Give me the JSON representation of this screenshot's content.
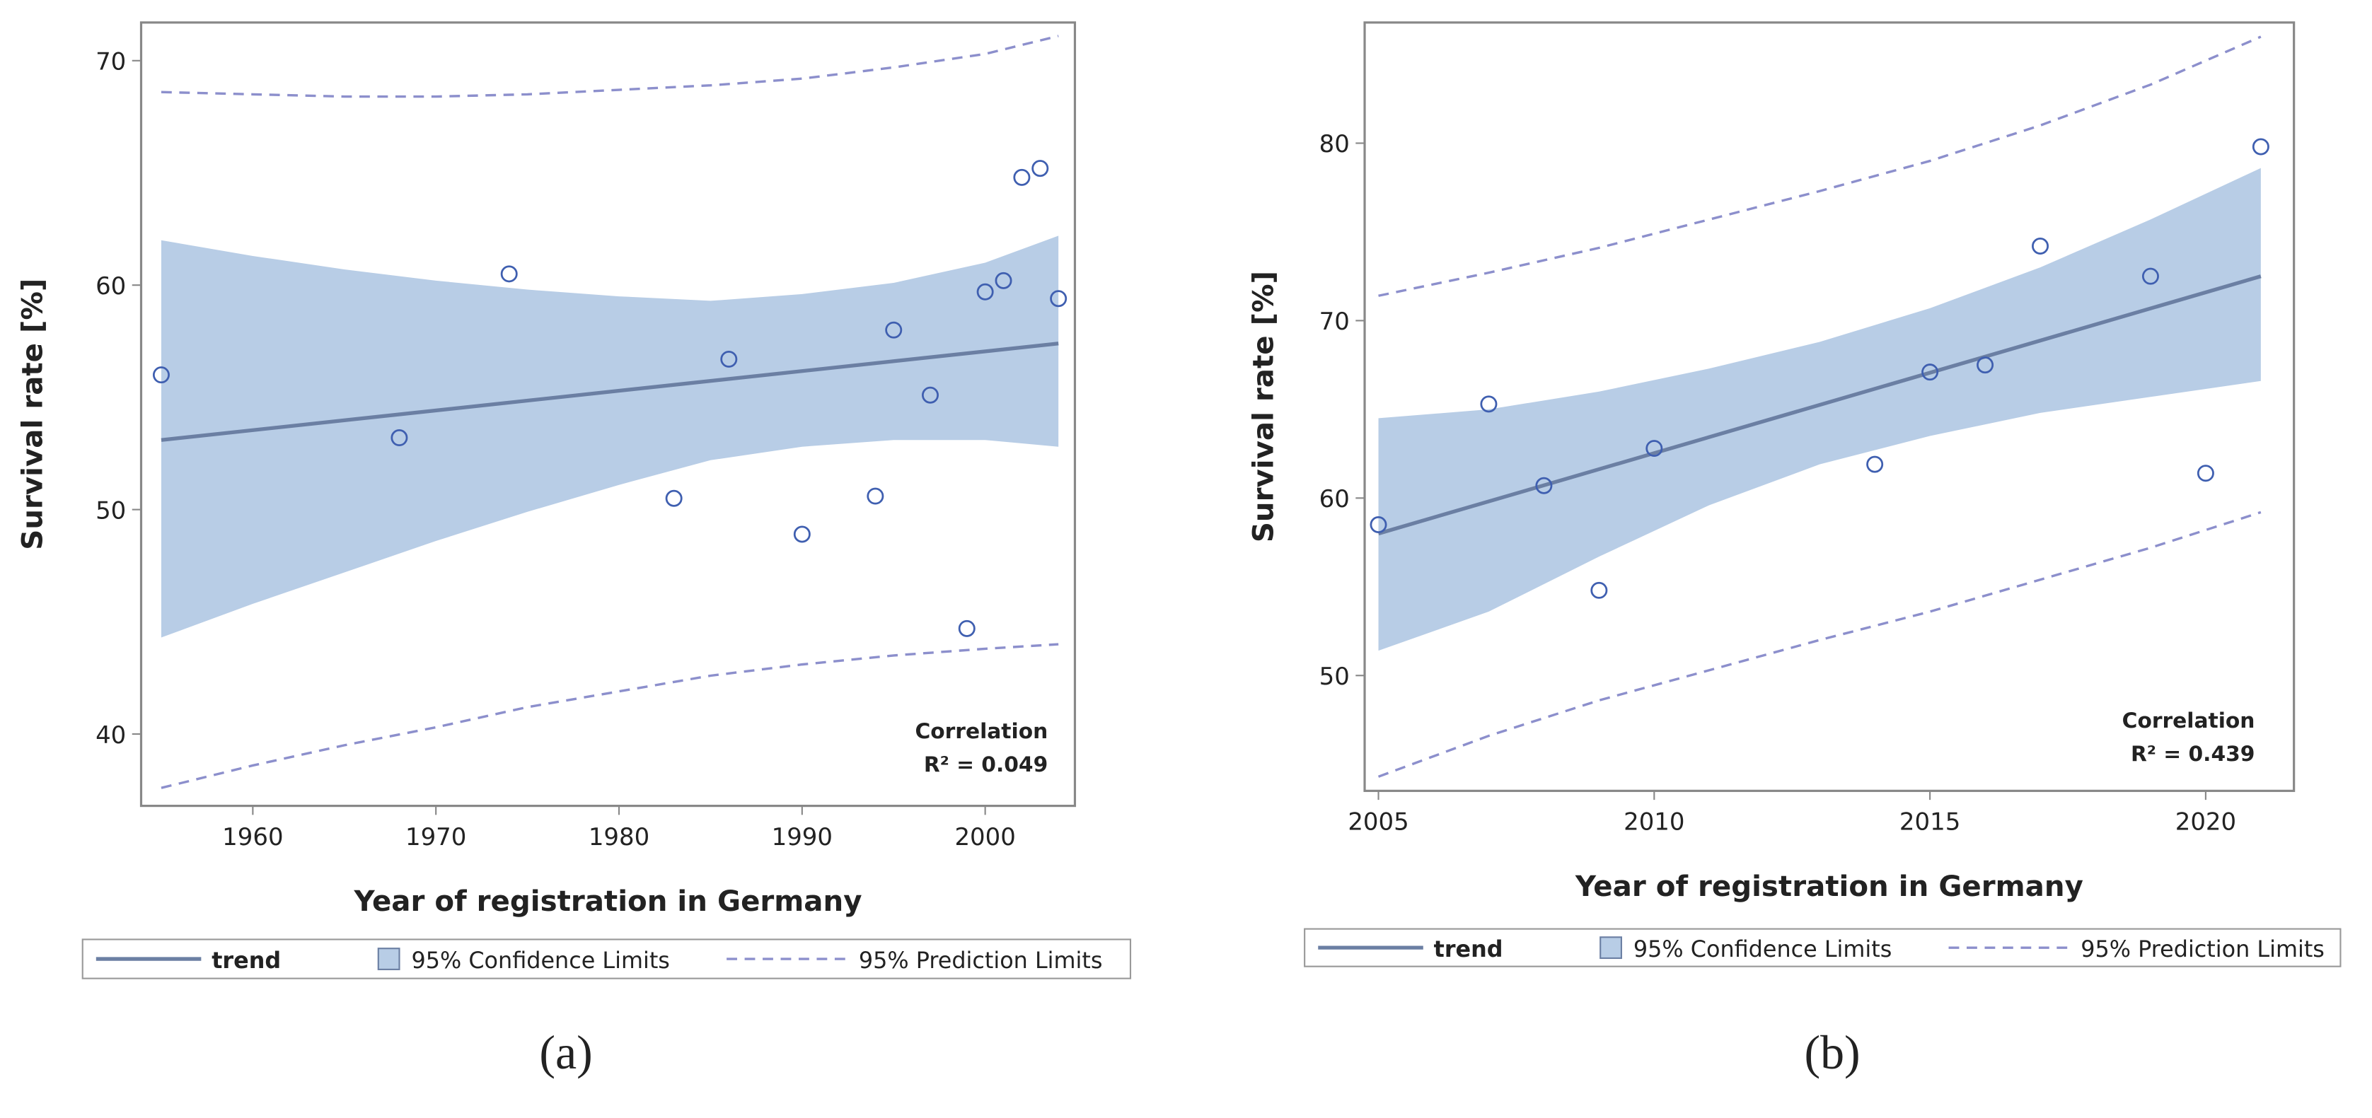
{
  "chart_data": [
    {
      "type": "scatter",
      "panel_label": "(a)",
      "xlabel": "Year of registration in Germany",
      "ylabel": "Survival rate [%]",
      "annotation": [
        "Correlation",
        "R² = 0.049"
      ],
      "xlim": [
        1953.9,
        2004.9
      ],
      "ylim": [
        36.8,
        71.7
      ],
      "xticks": [
        1960,
        1970,
        1980,
        1990,
        2000
      ],
      "yticks": [
        40,
        50,
        60,
        70
      ],
      "points": {
        "color": "#3f5fb0",
        "x": [
          1955,
          1968,
          1974,
          1983,
          1986,
          1990,
          1994,
          1995,
          1997,
          1999,
          2000,
          2001,
          2002,
          2003,
          2004
        ],
        "values": [
          56.0,
          53.2,
          60.5,
          50.5,
          56.7,
          48.9,
          50.6,
          58.0,
          55.1,
          44.7,
          59.7,
          60.2,
          64.8,
          65.2,
          59.4
        ]
      },
      "trend": {
        "name": "trend",
        "color": "#6b7fa3",
        "x": [
          1955,
          2004
        ],
        "values": [
          53.1,
          57.4
        ]
      },
      "confidence": {
        "name": "95% Confidence Limits",
        "color": "#b8cde6",
        "x": [
          1955,
          1960,
          1965,
          1970,
          1975,
          1980,
          1985,
          1990,
          1995,
          2000,
          2004
        ],
        "upper": [
          62.0,
          61.3,
          60.7,
          60.2,
          59.8,
          59.5,
          59.3,
          59.6,
          60.1,
          61.0,
          62.2
        ],
        "lower": [
          44.3,
          45.8,
          47.2,
          48.6,
          49.9,
          51.1,
          52.2,
          52.8,
          53.1,
          53.1,
          52.8
        ]
      },
      "prediction": {
        "name": "95% Prediction Limits",
        "color": "#8c8fcc",
        "x": [
          1955,
          1960,
          1965,
          1970,
          1975,
          1980,
          1985,
          1990,
          1995,
          2000,
          2004
        ],
        "upper": [
          68.6,
          68.5,
          68.4,
          68.4,
          68.5,
          68.7,
          68.9,
          69.2,
          69.7,
          70.3,
          71.1
        ],
        "lower": [
          37.6,
          38.6,
          39.5,
          40.3,
          41.2,
          41.9,
          42.6,
          43.1,
          43.5,
          43.8,
          44.0
        ]
      }
    },
    {
      "type": "scatter",
      "panel_label": "(b)",
      "xlabel": "Year of registration in Germany",
      "ylabel": "Survival rate [%]",
      "annotation": [
        "Correlation",
        "R² = 0.439"
      ],
      "xlim": [
        2004.75,
        2021.6
      ],
      "ylim": [
        43.5,
        86.8
      ],
      "xticks": [
        2005,
        2010,
        2015,
        2020
      ],
      "yticks": [
        50,
        60,
        70,
        80
      ],
      "points": {
        "color": "#3f5fb0",
        "x": [
          2005,
          2007,
          2008,
          2009,
          2010,
          2014,
          2015,
          2016,
          2017,
          2019,
          2020,
          2021
        ],
        "values": [
          58.5,
          65.3,
          60.7,
          54.8,
          62.8,
          61.9,
          67.1,
          67.5,
          74.2,
          72.5,
          61.4,
          79.8
        ]
      },
      "trend": {
        "name": "trend",
        "color": "#6b7fa3",
        "x": [
          2005,
          2021
        ],
        "values": [
          58.0,
          72.5
        ]
      },
      "confidence": {
        "name": "95% Confidence Limits",
        "color": "#b8cde6",
        "x": [
          2005,
          2007,
          2009,
          2011,
          2013,
          2015,
          2017,
          2019,
          2021
        ],
        "upper": [
          64.5,
          65.0,
          66.0,
          67.3,
          68.8,
          70.7,
          73.0,
          75.7,
          78.6
        ],
        "lower": [
          51.4,
          53.6,
          56.7,
          59.6,
          61.9,
          63.5,
          64.8,
          65.7,
          66.6
        ]
      },
      "prediction": {
        "name": "95% Prediction Limits",
        "color": "#8c8fcc",
        "x": [
          2005,
          2007,
          2009,
          2011,
          2013,
          2015,
          2017,
          2019,
          2021
        ],
        "upper": [
          71.4,
          72.7,
          74.1,
          75.7,
          77.3,
          79.0,
          81.0,
          83.3,
          86.0
        ],
        "lower": [
          44.3,
          46.6,
          48.6,
          50.3,
          52.0,
          53.6,
          55.4,
          57.2,
          59.2
        ]
      }
    }
  ]
}
